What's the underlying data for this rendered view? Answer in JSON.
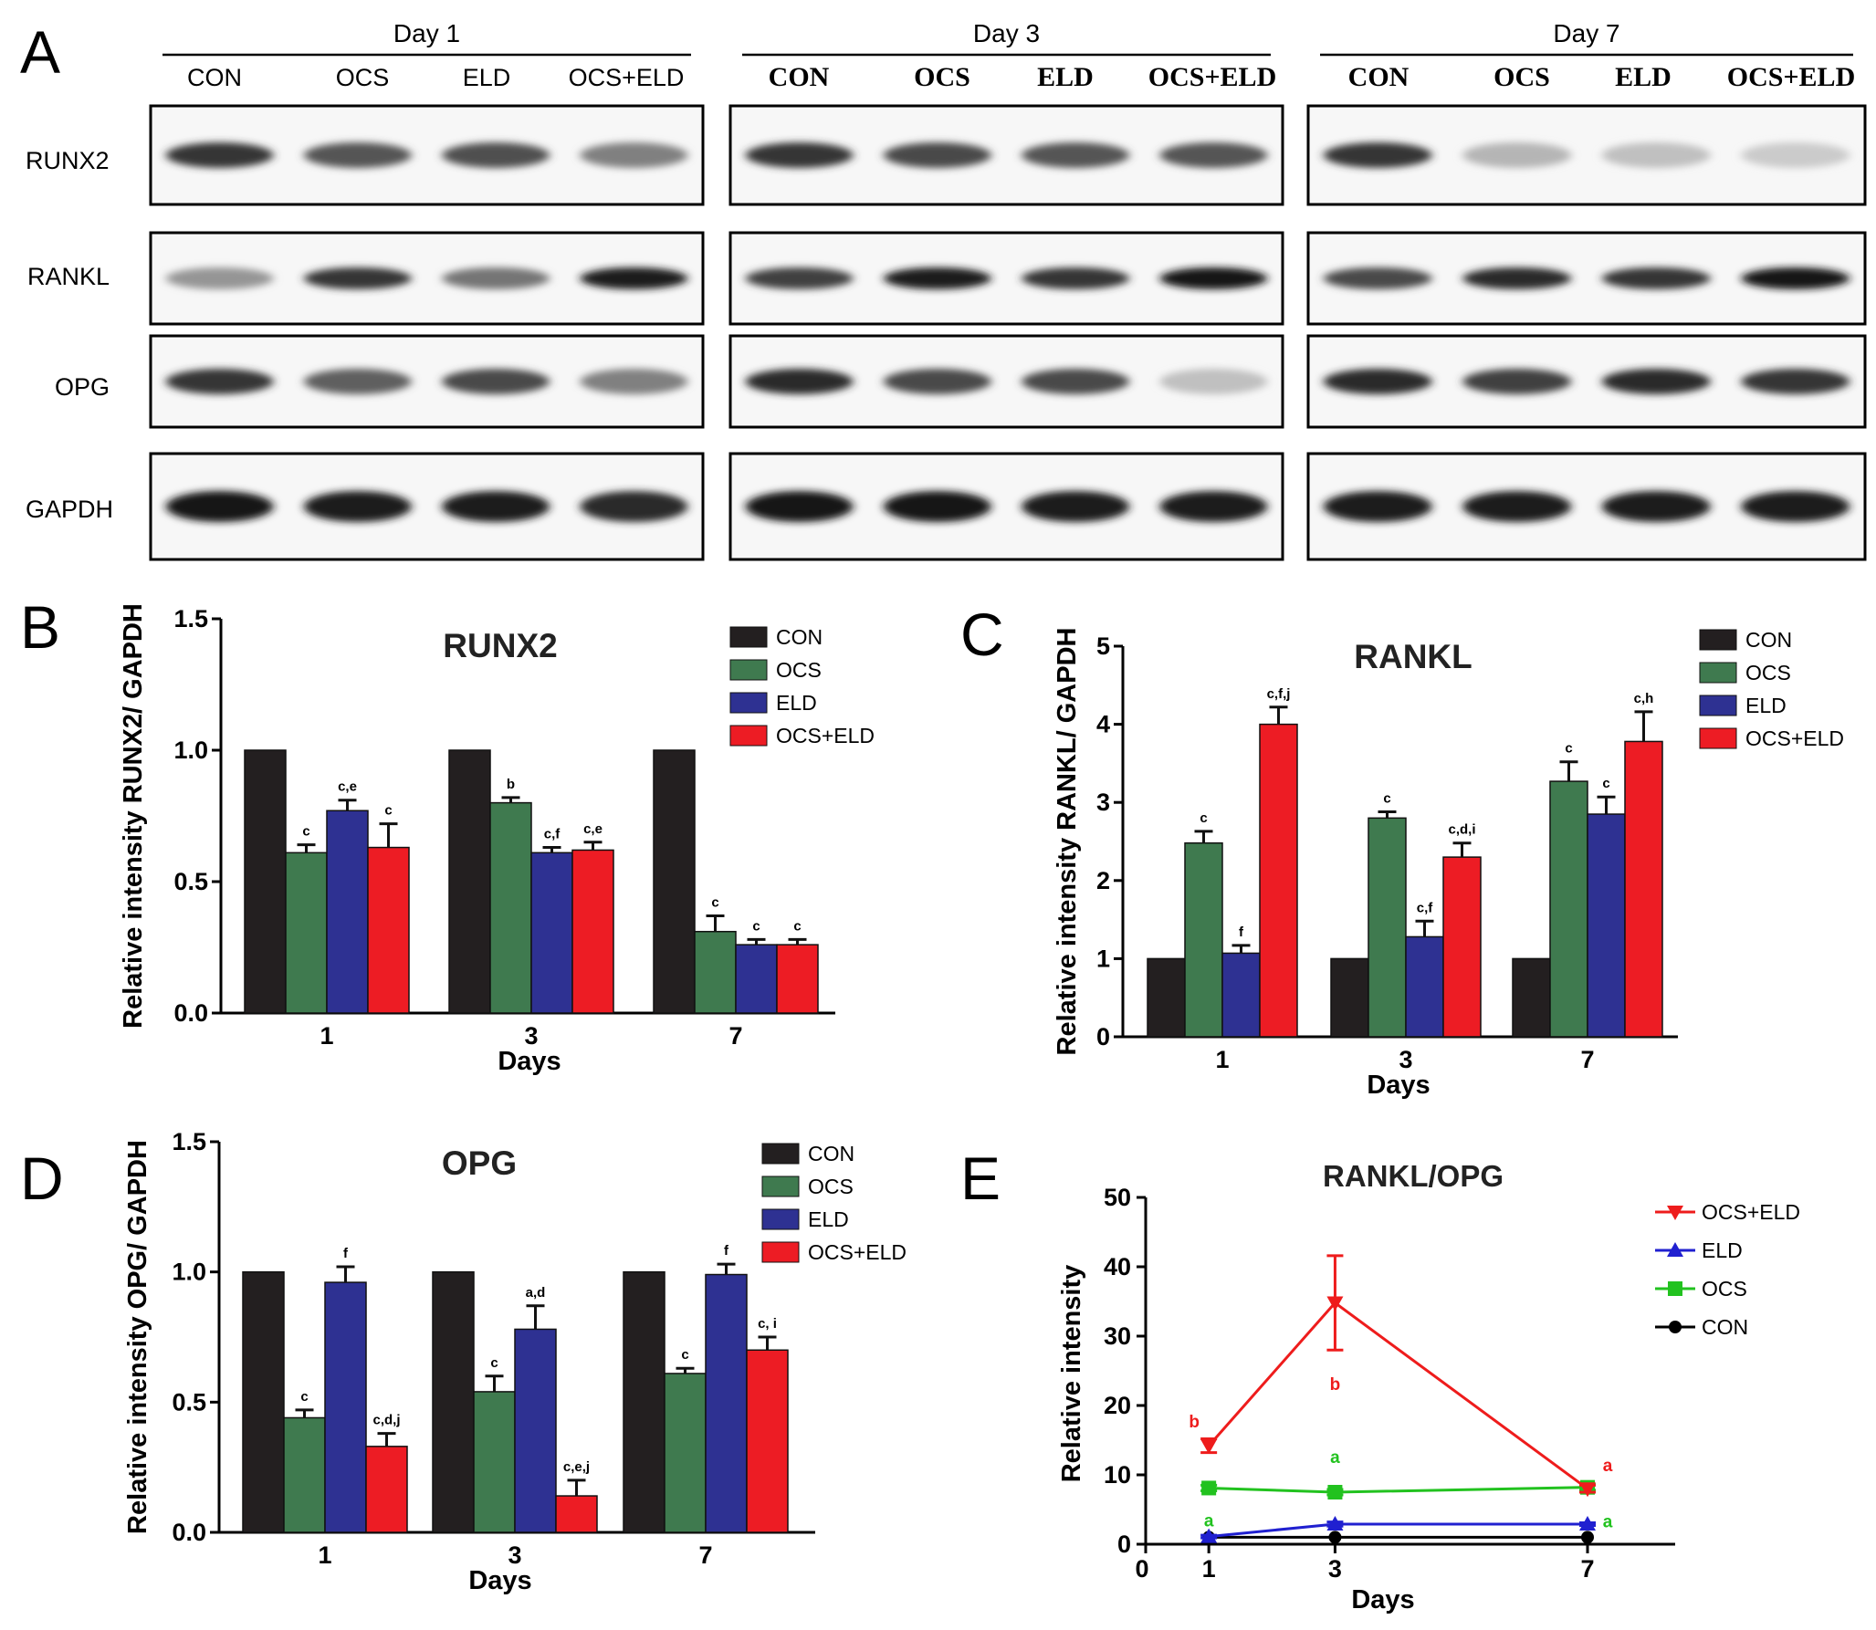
{
  "panel_letters": [
    "A",
    "B",
    "C",
    "D",
    "E"
  ],
  "colors": {
    "CON": "#231f20",
    "OCS": "#3f7a4f",
    "ELD": "#2e3192",
    "OCS+ELD": "#ed1c24",
    "line_OCS": "#22c21f",
    "line_ELD": "#2020d0",
    "line_OCSELD": "#ee1c1c",
    "line_CON": "#000000"
  },
  "western_blot": {
    "days": [
      "Day 1",
      "Day 3",
      "Day 7"
    ],
    "lanes": [
      "CON",
      "OCS",
      "ELD",
      "OCS+ELD"
    ],
    "proteins": [
      "RUNX2",
      "RANKL",
      "OPG",
      "GAPDH"
    ],
    "band_intensity": {
      "Day 1": {
        "RUNX2": [
          0.85,
          0.7,
          0.72,
          0.5
        ],
        "RANKL": [
          0.4,
          0.85,
          0.55,
          0.95
        ],
        "OPG": [
          0.85,
          0.65,
          0.75,
          0.5
        ],
        "GAPDH": [
          1.0,
          0.95,
          0.95,
          0.9
        ]
      },
      "Day 3": {
        "RUNX2": [
          0.85,
          0.75,
          0.7,
          0.7
        ],
        "RANKL": [
          0.8,
          0.95,
          0.85,
          1.0
        ],
        "OPG": [
          0.9,
          0.75,
          0.75,
          0.2
        ],
        "GAPDH": [
          1.0,
          1.0,
          0.95,
          0.95
        ]
      },
      "Day 7": {
        "RUNX2": [
          0.85,
          0.25,
          0.2,
          0.15
        ],
        "RANKL": [
          0.75,
          0.9,
          0.85,
          1.0
        ],
        "OPG": [
          0.9,
          0.8,
          0.9,
          0.85
        ],
        "GAPDH": [
          0.95,
          0.95,
          0.95,
          0.95
        ]
      }
    }
  },
  "chart_data": [
    {
      "id": "B",
      "type": "bar",
      "title": "RUNX2",
      "ylabel": "Relative intensity RUNX2/ GAPDH",
      "xlabel": "Days",
      "categories": [
        "1",
        "3",
        "7"
      ],
      "ylim": [
        0,
        1.5
      ],
      "yticks": [
        "0.0",
        "0.5",
        "1.0",
        "1.5"
      ],
      "legend_position": "top-right",
      "series": [
        {
          "name": "CON",
          "values": [
            1.0,
            1.0,
            1.0
          ],
          "errors": [
            0,
            0,
            0
          ],
          "labels": [
            "",
            "",
            ""
          ]
        },
        {
          "name": "OCS",
          "values": [
            0.61,
            0.8,
            0.31
          ],
          "errors": [
            0.03,
            0.02,
            0.06
          ],
          "labels": [
            "c",
            "b",
            "c"
          ]
        },
        {
          "name": "ELD",
          "values": [
            0.77,
            0.61,
            0.26
          ],
          "errors": [
            0.04,
            0.02,
            0.02
          ],
          "labels": [
            "c,e",
            "c,f",
            "c"
          ]
        },
        {
          "name": "OCS+ELD",
          "values": [
            0.63,
            0.62,
            0.26
          ],
          "errors": [
            0.09,
            0.03,
            0.02
          ],
          "labels": [
            "c",
            "c,e",
            "c"
          ]
        }
      ]
    },
    {
      "id": "C",
      "type": "bar",
      "title": "RANKL",
      "ylabel": "Relative intensity  RANKL/ GAPDH",
      "xlabel": "Days",
      "categories": [
        "1",
        "3",
        "7"
      ],
      "ylim": [
        0,
        5
      ],
      "yticks": [
        "0",
        "1",
        "2",
        "3",
        "4",
        "5"
      ],
      "legend_position": "top-right",
      "series": [
        {
          "name": "CON",
          "values": [
            1.0,
            1.0,
            1.0
          ],
          "errors": [
            0,
            0,
            0
          ],
          "labels": [
            "",
            "",
            ""
          ]
        },
        {
          "name": "OCS",
          "values": [
            2.48,
            2.8,
            3.27
          ],
          "errors": [
            0.15,
            0.08,
            0.25
          ],
          "labels": [
            "c",
            "c",
            "c"
          ]
        },
        {
          "name": "ELD",
          "values": [
            1.07,
            1.28,
            2.85
          ],
          "errors": [
            0.1,
            0.2,
            0.22
          ],
          "labels": [
            "f",
            "c,f",
            "c"
          ]
        },
        {
          "name": "OCS+ELD",
          "values": [
            4.0,
            2.3,
            3.78
          ],
          "errors": [
            0.22,
            0.18,
            0.38
          ],
          "labels": [
            "c,f,j",
            "c,d,i",
            "c,h"
          ]
        }
      ]
    },
    {
      "id": "D",
      "type": "bar",
      "title": "OPG",
      "ylabel": "Relative intensity OPG/ GAPDH",
      "xlabel": "Days",
      "categories": [
        "1",
        "3",
        "7"
      ],
      "ylim": [
        0,
        1.5
      ],
      "yticks": [
        "0.0",
        "0.5",
        "1.0",
        "1.5"
      ],
      "legend_position": "top-right",
      "series": [
        {
          "name": "CON",
          "values": [
            1.0,
            1.0,
            1.0
          ],
          "errors": [
            0,
            0,
            0
          ],
          "labels": [
            "",
            "",
            ""
          ]
        },
        {
          "name": "OCS",
          "values": [
            0.44,
            0.54,
            0.61
          ],
          "errors": [
            0.03,
            0.06,
            0.02
          ],
          "labels": [
            "c",
            "c",
            "c"
          ]
        },
        {
          "name": "ELD",
          "values": [
            0.96,
            0.78,
            0.99
          ],
          "errors": [
            0.06,
            0.09,
            0.04
          ],
          "labels": [
            "f",
            "a,d",
            "f"
          ]
        },
        {
          "name": "OCS+ELD",
          "values": [
            0.33,
            0.14,
            0.7
          ],
          "errors": [
            0.05,
            0.06,
            0.05
          ],
          "labels": [
            "c,d,j",
            "c,e,j",
            "c, i"
          ]
        }
      ]
    },
    {
      "id": "E",
      "type": "line",
      "title": "RANKL/OPG",
      "ylabel": "Relative intensity",
      "xlabel": "Days",
      "xticks": [
        "0",
        "1",
        "3",
        "7"
      ],
      "ylim": [
        0,
        50
      ],
      "yticks": [
        "0",
        "10",
        "20",
        "30",
        "40",
        "50"
      ],
      "legend_position": "top-right",
      "x": [
        1,
        3,
        7
      ],
      "series": [
        {
          "name": "OCS+ELD",
          "marker": "triangle-down",
          "values": [
            14.2,
            34.8,
            8.0
          ],
          "errors": [
            1.0,
            6.8,
            0.5
          ],
          "labels": [
            "b",
            "b",
            "a"
          ]
        },
        {
          "name": "ELD",
          "marker": "triangle-up",
          "values": [
            1.1,
            2.9,
            2.9
          ],
          "errors": [
            0.2,
            0.3,
            0.2
          ],
          "labels": [
            "",
            "",
            ""
          ]
        },
        {
          "name": "OCS",
          "marker": "square",
          "values": [
            8.1,
            7.5,
            8.2
          ],
          "errors": [
            0.4,
            0.4,
            0.4
          ],
          "labels": [
            "a",
            "a",
            "a"
          ]
        },
        {
          "name": "CON",
          "marker": "circle",
          "values": [
            1.0,
            1.0,
            1.0
          ],
          "errors": [
            0,
            0,
            0
          ],
          "labels": [
            "",
            "",
            ""
          ]
        }
      ]
    }
  ]
}
